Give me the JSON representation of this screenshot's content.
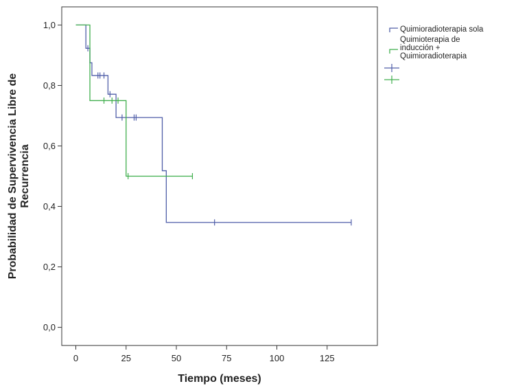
{
  "chart_data": {
    "type": "line",
    "subtype": "kaplan-meier",
    "title": "",
    "xlabel": "Tiempo (meses)",
    "ylabel_lines": [
      "Probabilidad de Supervivencia Libre de",
      "Recurrencia"
    ],
    "xlim": [
      -7,
      150
    ],
    "ylim": [
      -0.06,
      1.06
    ],
    "x_ticks": [
      0,
      25,
      50,
      75,
      100,
      125
    ],
    "x_tick_labels": [
      "0",
      "25",
      "50",
      "75",
      "100",
      "125"
    ],
    "y_ticks": [
      0.0,
      0.2,
      0.4,
      0.6,
      0.8,
      1.0
    ],
    "y_tick_labels": [
      "0,0",
      "0,2",
      "0,4",
      "0,6",
      "0,8",
      "1,0"
    ],
    "grid": false,
    "legend_position": "right",
    "legend_entries": [
      {
        "lines": [
          "Quimioradioterapia sola"
        ],
        "color": "#4f5ea8"
      },
      {
        "lines": [
          "Quimioterapia de",
          "inducción +",
          "Quimioradioterapia"
        ],
        "color": "#3fae4c"
      }
    ],
    "series": [
      {
        "name": "Quimioradioterapia sola",
        "color": "#4f5ea8",
        "steps": [
          [
            0,
            1.0
          ],
          [
            5,
            0.923
          ],
          [
            7,
            0.875
          ],
          [
            8,
            0.833
          ],
          [
            16,
            0.771
          ],
          [
            20,
            0.694
          ],
          [
            43,
            0.518
          ],
          [
            45,
            0.347
          ],
          [
            137,
            0.347
          ]
        ],
        "censored": [
          [
            6,
            0.923
          ],
          [
            11,
            0.833
          ],
          [
            12,
            0.833
          ],
          [
            14,
            0.833
          ],
          [
            17,
            0.771
          ],
          [
            23,
            0.694
          ],
          [
            29,
            0.694
          ],
          [
            30,
            0.694
          ],
          [
            69,
            0.347
          ],
          [
            137,
            0.347
          ]
        ]
      },
      {
        "name": "Quimioterapia de inducción + Quimioradioterapia",
        "color": "#3fae4c",
        "steps": [
          [
            0,
            1.0
          ],
          [
            7,
            0.75
          ],
          [
            25,
            0.5
          ],
          [
            58,
            0.5
          ]
        ],
        "censored": [
          [
            14,
            0.75
          ],
          [
            18,
            0.75
          ],
          [
            21,
            0.75
          ],
          [
            26,
            0.5
          ],
          [
            58,
            0.5
          ]
        ]
      }
    ]
  }
}
